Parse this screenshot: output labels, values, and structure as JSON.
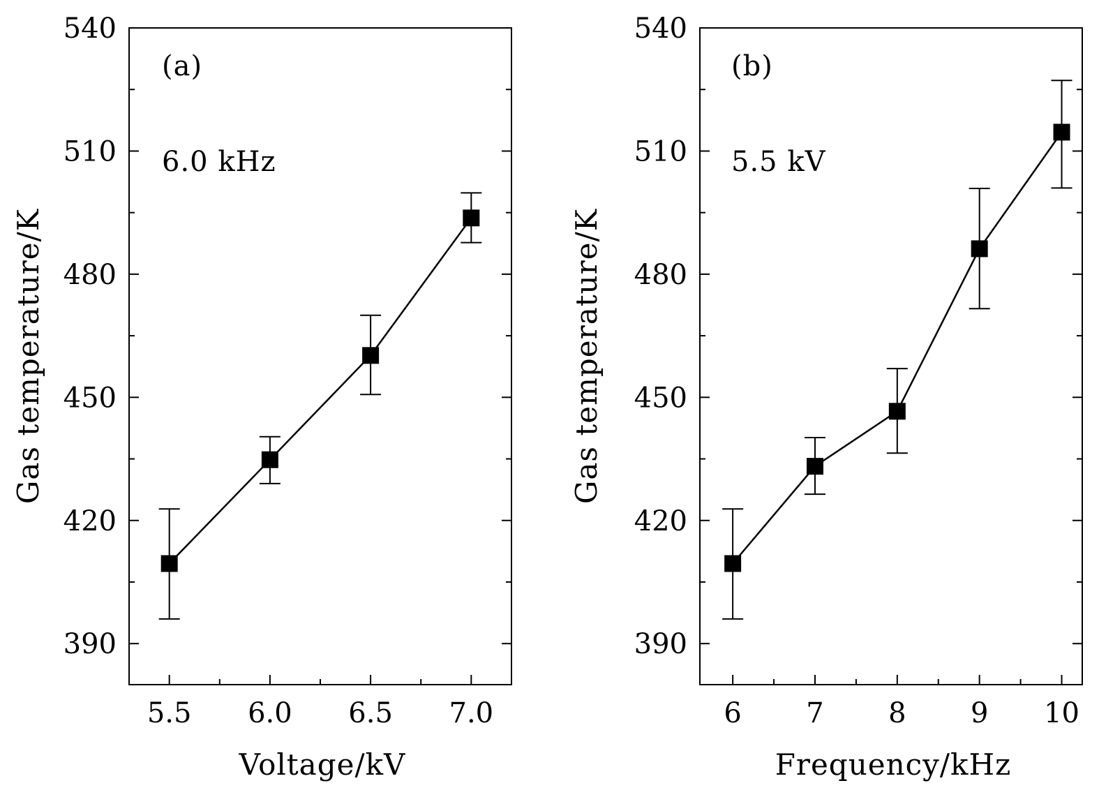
{
  "chart_data": [
    {
      "type": "line",
      "panel_label": "(a)",
      "annotation": "6.0 kHz",
      "xlabel": "Voltage/kV",
      "ylabel": "Gas temperature/K",
      "x": [
        5.5,
        6.0,
        6.5,
        7.0
      ],
      "x_tick_labels": [
        "5.5",
        "6.0",
        "6.5",
        "7.0"
      ],
      "y": [
        409.5,
        434.8,
        460.2,
        493.7
      ],
      "y_err_low": [
        13.5,
        5.8,
        9.5,
        6.0
      ],
      "y_err_high": [
        13.3,
        5.6,
        9.8,
        6.1
      ],
      "xlim": [
        5.3,
        7.2
      ],
      "ylim": [
        380,
        540
      ],
      "y_ticks": [
        390,
        420,
        450,
        480,
        510,
        540
      ],
      "y_tick_labels": [
        "390",
        "420",
        "450",
        "480",
        "510",
        "540"
      ],
      "marker": "square",
      "color": "#000000",
      "grid": false
    },
    {
      "type": "line",
      "panel_label": "(b)",
      "annotation": "5.5 kV",
      "xlabel": "Frequency/kHz",
      "ylabel": "Gas temperature/K",
      "x": [
        6,
        7,
        8,
        9,
        10
      ],
      "x_tick_labels": [
        "6",
        "7",
        "8",
        "9",
        "10"
      ],
      "y": [
        409.5,
        433.2,
        446.6,
        486.2,
        514.6
      ],
      "y_err_low": [
        13.5,
        6.8,
        10.2,
        14.6,
        13.6
      ],
      "y_err_high": [
        13.3,
        7.0,
        10.4,
        14.7,
        12.6
      ],
      "xlim": [
        5.6,
        10.25
      ],
      "ylim": [
        380,
        540
      ],
      "y_ticks": [
        390,
        420,
        450,
        480,
        510,
        540
      ],
      "y_tick_labels": [
        "390",
        "420",
        "450",
        "480",
        "510",
        "540"
      ],
      "marker": "square",
      "color": "#000000",
      "grid": false
    }
  ]
}
